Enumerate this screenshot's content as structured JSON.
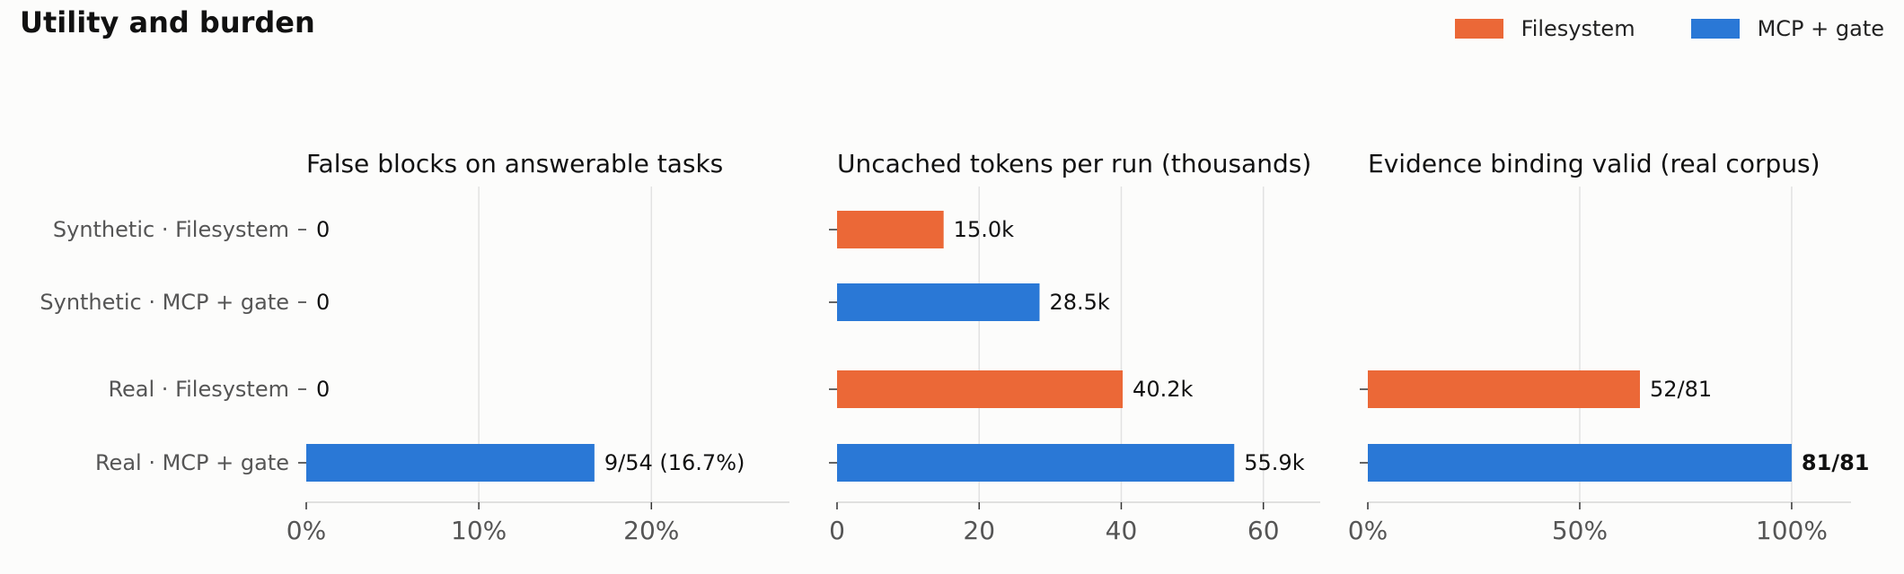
{
  "title": "Utility and burden",
  "legend": [
    {
      "label": "Filesystem",
      "color": "#eb6837"
    },
    {
      "label": "MCP + gate",
      "color": "#2a78d6"
    }
  ],
  "row_labels": [
    "Synthetic · Filesystem",
    "Synthetic · MCP + gate",
    "Real · Filesystem",
    "Real · MCP + gate"
  ],
  "chart_data": [
    {
      "type": "bar",
      "orientation": "horizontal",
      "title": "False blocks on answerable tasks",
      "categories": [
        "Synthetic · Filesystem",
        "Synthetic · MCP + gate",
        "Real · Filesystem",
        "Real · MCP + gate"
      ],
      "values": [
        0,
        0,
        0,
        16.7
      ],
      "data_labels": [
        "0",
        "0",
        "0",
        "9/54 (16.7%)"
      ],
      "bar_colors": [
        "#eb6837",
        "#2a78d6",
        "#eb6837",
        "#2a78d6"
      ],
      "xlim": [
        0,
        28
      ],
      "xticks": [
        0,
        10,
        20
      ],
      "xtick_labels": [
        "0%",
        "10%",
        "20%"
      ],
      "grid": true
    },
    {
      "type": "bar",
      "orientation": "horizontal",
      "title": "Uncached tokens per run (thousands)",
      "categories": [
        "Synthetic · Filesystem",
        "Synthetic · MCP + gate",
        "Real · Filesystem",
        "Real · MCP + gate"
      ],
      "values": [
        15.0,
        28.5,
        40.2,
        55.9
      ],
      "data_labels": [
        "15.0k",
        "28.5k",
        "40.2k",
        "55.9k"
      ],
      "bar_colors": [
        "#eb6837",
        "#2a78d6",
        "#eb6837",
        "#2a78d6"
      ],
      "xlim": [
        0,
        68
      ],
      "xticks": [
        0,
        20,
        40,
        60
      ],
      "xtick_labels": [
        "0",
        "20",
        "40",
        "60"
      ],
      "grid": true
    },
    {
      "type": "bar",
      "orientation": "horizontal",
      "title": "Evidence binding valid (real corpus)",
      "categories": [
        "Real · Filesystem",
        "Real · MCP + gate"
      ],
      "values": [
        64.2,
        100
      ],
      "data_labels": [
        "52/81",
        "81/81"
      ],
      "bold_labels": [
        false,
        true
      ],
      "bar_colors": [
        "#eb6837",
        "#2a78d6"
      ],
      "xlim": [
        0,
        114
      ],
      "xticks": [
        0,
        50,
        100
      ],
      "xtick_labels": [
        "0%",
        "50%",
        "100%"
      ],
      "grid": true
    }
  ]
}
